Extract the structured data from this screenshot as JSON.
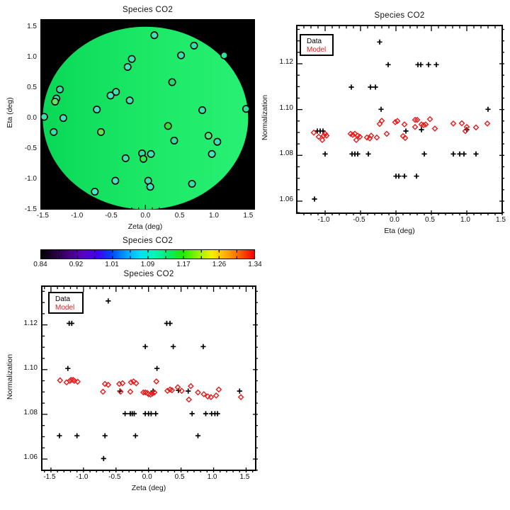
{
  "figure": {
    "background": "#ffffff"
  },
  "colors": {
    "data_marker": "#000000",
    "model_marker": "#e81b1b",
    "frame": "#000000",
    "map_background": "#000000"
  },
  "chart_data": [
    {
      "id": "map",
      "type": "scatter",
      "title": "Species CO2",
      "xlabel": "Zeta (deg)",
      "ylabel": "Eta (deg)",
      "x_range": [
        -1.535,
        1.6
      ],
      "y_range": [
        -1.505,
        1.625
      ],
      "x_major_ticks": [
        -1.5,
        -1.0,
        -0.5,
        0.0,
        0.5,
        1.0,
        1.5
      ],
      "x_tick_labels": [
        "-1.5",
        "-1.0",
        "-0.5",
        "0.0",
        "0.5",
        "1.0",
        "1.5"
      ],
      "y_major_ticks": [
        -1.5,
        -1.0,
        -0.5,
        0.0,
        0.5,
        1.0,
        1.5
      ],
      "y_tick_labels": [
        "-1.5",
        "-1.0",
        "-0.5",
        "0.0",
        "0.5",
        "1.0",
        "1.5"
      ],
      "x_minor_step": 0.1,
      "y_minor_step": 0.1,
      "grid": false,
      "disk": {
        "radius_deg": 1.5,
        "gradient": [
          "#09d857",
          "#1ce866",
          "#28f073"
        ]
      },
      "points": [
        {
          "zeta": 0.13,
          "eta": 1.36,
          "fill": "#3fe2b0"
        },
        {
          "zeta": 0.71,
          "eta": 1.19,
          "fill": "#35dfa6"
        },
        {
          "zeta": 1.15,
          "eta": 1.03,
          "fill": "#2ce49a"
        },
        {
          "zeta": 0.52,
          "eta": 1.03,
          "fill": "#38e0ae"
        },
        {
          "zeta": -0.2,
          "eta": 0.97,
          "fill": "#41e4b8"
        },
        {
          "zeta": -0.26,
          "eta": 0.84,
          "fill": "#45e6c0"
        },
        {
          "zeta": 0.39,
          "eta": 0.59,
          "fill": "#2bdb70"
        },
        {
          "zeta": -1.25,
          "eta": 0.47,
          "fill": "#36e0a8"
        },
        {
          "zeta": -0.43,
          "eta": 0.43,
          "fill": "#3ce2b2"
        },
        {
          "zeta": -0.51,
          "eta": 0.37,
          "fill": "#44e5bd"
        },
        {
          "zeta": -1.3,
          "eta": 0.32,
          "fill": "#3ee3b4"
        },
        {
          "zeta": -1.32,
          "eta": 0.27,
          "fill": "#5fe75a"
        },
        {
          "zeta": -0.23,
          "eta": 0.29,
          "fill": "#40e4b6"
        },
        {
          "zeta": -0.71,
          "eta": 0.14,
          "fill": "#3fe3c6"
        },
        {
          "zeta": 0.83,
          "eta": 0.13,
          "fill": "#3ae1ae"
        },
        {
          "zeta": 1.47,
          "eta": 0.15,
          "fill": "#2fdd9c"
        },
        {
          "zeta": -1.48,
          "eta": 0.02,
          "fill": "#38dfa8"
        },
        {
          "zeta": -1.2,
          "eta": 0.0,
          "fill": "#41e4ba"
        },
        {
          "zeta": 0.33,
          "eta": -0.13,
          "fill": "#2fe52f"
        },
        {
          "zeta": -1.34,
          "eta": -0.23,
          "fill": "#37e0a4"
        },
        {
          "zeta": -0.65,
          "eta": -0.23,
          "fill": "#64e04b"
        },
        {
          "zeta": 0.92,
          "eta": -0.29,
          "fill": "#52e86e"
        },
        {
          "zeta": 0.42,
          "eta": -0.37,
          "fill": "#33df9e"
        },
        {
          "zeta": 1.05,
          "eta": -0.39,
          "fill": "#3ce2b4"
        },
        {
          "zeta": -0.05,
          "eta": -0.58,
          "fill": "#30dd9e"
        },
        {
          "zeta": 0.08,
          "eta": -0.59,
          "fill": "#3de3b6"
        },
        {
          "zeta": 0.97,
          "eta": -0.59,
          "fill": "#44e5c0"
        },
        {
          "zeta": -0.03,
          "eta": -0.67,
          "fill": "#35e649"
        },
        {
          "zeta": -0.29,
          "eta": -0.66,
          "fill": "#3ce2b0"
        },
        {
          "zeta": -0.44,
          "eta": -1.03,
          "fill": "#46e6c2"
        },
        {
          "zeta": 0.04,
          "eta": -1.03,
          "fill": "#39e1ac"
        },
        {
          "zeta": 0.07,
          "eta": -1.13,
          "fill": "#41e4b8"
        },
        {
          "zeta": 0.68,
          "eta": -1.08,
          "fill": "#36e0a6"
        },
        {
          "zeta": -0.74,
          "eta": -1.21,
          "fill": "#4ae7c6"
        }
      ]
    },
    {
      "id": "norm-vs-eta",
      "type": "scatter",
      "title": "Species CO2",
      "xlabel": "Eta (deg)",
      "ylabel": "Normalization",
      "x_range": [
        -1.39,
        1.53
      ],
      "y_range": [
        1.0538,
        1.1364
      ],
      "x_major_ticks": [
        -1.0,
        -0.5,
        0.0,
        0.5,
        1.0,
        1.5
      ],
      "x_tick_labels": [
        "-1.0",
        "-0.5",
        "0.0",
        "0.5",
        "1.0",
        "1.5"
      ],
      "y_major_ticks": [
        1.06,
        1.08,
        1.1,
        1.12
      ],
      "y_tick_labels": [
        "1.06",
        "1.08",
        "1.10",
        "1.12"
      ],
      "x_minor_step": 0.1,
      "y_minor_step": 0.005,
      "grid": false,
      "legend": {
        "data_label": "Data",
        "model_label": "Model"
      },
      "series": [
        {
          "name": "Data",
          "marker": "plus",
          "color": "#000000",
          "points": [
            [
              -0.23,
              1.1295
            ],
            [
              -0.11,
              1.1196
            ],
            [
              0.31,
              1.1196
            ],
            [
              0.35,
              1.1196
            ],
            [
              0.46,
              1.1196
            ],
            [
              0.57,
              1.1196
            ],
            [
              -0.63,
              1.1098
            ],
            [
              -0.36,
              1.1098
            ],
            [
              -0.29,
              1.1098
            ],
            [
              -0.21,
              1.1001
            ],
            [
              1.3,
              1.1001
            ],
            [
              -1.11,
              1.0906
            ],
            [
              -1.07,
              1.0906
            ],
            [
              -1.03,
              1.0906
            ],
            [
              0.14,
              1.0906
            ],
            [
              0.36,
              1.0912
            ],
            [
              1.0,
              1.0912
            ],
            [
              -1.0,
              1.0806
            ],
            [
              -0.62,
              1.0806
            ],
            [
              -0.58,
              1.0806
            ],
            [
              -0.54,
              1.0806
            ],
            [
              -0.39,
              1.0806
            ],
            [
              0.4,
              1.0806
            ],
            [
              0.81,
              1.0806
            ],
            [
              0.9,
              1.0806
            ],
            [
              0.96,
              1.0806
            ],
            [
              1.13,
              1.0806
            ],
            [
              0.0,
              1.0709
            ],
            [
              0.04,
              1.0709
            ],
            [
              0.12,
              1.0709
            ],
            [
              0.29,
              1.0709
            ],
            [
              -1.15,
              1.0609
            ]
          ]
        },
        {
          "name": "Model",
          "marker": "diamond",
          "color": "#e81b1b",
          "points": [
            [
              -1.16,
              1.0899
            ],
            [
              -1.09,
              1.0881
            ],
            [
              -1.04,
              1.0867
            ],
            [
              -1.02,
              1.0886
            ],
            [
              -1.0,
              1.0894
            ],
            [
              -0.98,
              1.0886
            ],
            [
              -0.64,
              1.0894
            ],
            [
              -0.61,
              1.0889
            ],
            [
              -0.58,
              1.0894
            ],
            [
              -0.56,
              1.0867
            ],
            [
              -0.54,
              1.0886
            ],
            [
              -0.51,
              1.0881
            ],
            [
              -0.41,
              1.0878
            ],
            [
              -0.37,
              1.0874
            ],
            [
              -0.35,
              1.0886
            ],
            [
              -0.27,
              1.0878
            ],
            [
              -0.23,
              1.0937
            ],
            [
              -0.2,
              1.0951
            ],
            [
              -0.13,
              1.0894
            ],
            [
              -0.01,
              1.0945
            ],
            [
              0.02,
              1.095
            ],
            [
              0.1,
              1.0884
            ],
            [
              0.12,
              1.0935
            ],
            [
              0.13,
              1.0876
            ],
            [
              0.27,
              1.0955
            ],
            [
              0.3,
              1.0955
            ],
            [
              0.27,
              1.0924
            ],
            [
              0.36,
              1.0935
            ],
            [
              0.39,
              1.0932
            ],
            [
              0.42,
              1.0935
            ],
            [
              0.48,
              1.0958
            ],
            [
              0.55,
              1.0917
            ],
            [
              0.81,
              1.0939
            ],
            [
              0.93,
              1.094
            ],
            [
              0.98,
              1.0906
            ],
            [
              1.0,
              1.0924
            ],
            [
              1.13,
              1.0922
            ],
            [
              1.29,
              1.0939
            ]
          ]
        }
      ]
    },
    {
      "id": "colorbar",
      "type": "colorbar",
      "title": "Species CO2",
      "value_range": [
        0.84,
        1.34
      ],
      "tick_labels": [
        "0.84",
        "0.92",
        "1.01",
        "1.09",
        "1.17",
        "1.26",
        "1.34"
      ],
      "gradient": [
        "#000000",
        "#24003c",
        "#45007e",
        "#5602c8",
        "#3e00f5",
        "#0048ff",
        "#00a2ff",
        "#00e2f0",
        "#00f7b4",
        "#00ee6a",
        "#23e800",
        "#8ef300",
        "#f5ef00",
        "#ffb000",
        "#ff5a00",
        "#f60000"
      ]
    },
    {
      "id": "norm-vs-zeta",
      "type": "scatter",
      "title": "Species CO2",
      "xlabel": "Zeta (deg)",
      "ylabel": "Normalization",
      "x_range": [
        -1.63,
        1.68
      ],
      "y_range": [
        1.054,
        1.137
      ],
      "x_major_ticks": [
        -1.5,
        -1.0,
        -0.5,
        0.0,
        0.5,
        1.0,
        1.5
      ],
      "x_tick_labels": [
        "-1.5",
        "-1.0",
        "-0.5",
        "0.0",
        "0.5",
        "1.0",
        "1.5"
      ],
      "y_major_ticks": [
        1.06,
        1.08,
        1.1,
        1.12
      ],
      "y_tick_labels": [
        "1.06",
        "1.08",
        "1.10",
        "1.12"
      ],
      "x_minor_step": 0.1,
      "y_minor_step": 0.005,
      "grid": false,
      "legend": {
        "data_label": "Data",
        "model_label": "Model"
      },
      "series": [
        {
          "name": "Data",
          "marker": "plus",
          "color": "#000000",
          "points": [
            [
              -0.62,
              1.1307
            ],
            [
              -1.22,
              1.1207
            ],
            [
              -1.18,
              1.1207
            ],
            [
              0.28,
              1.1207
            ],
            [
              0.33,
              1.1207
            ],
            [
              -0.05,
              1.1103
            ],
            [
              0.38,
              1.1103
            ],
            [
              0.84,
              1.1103
            ],
            [
              -1.24,
              1.1005
            ],
            [
              0.13,
              1.1005
            ],
            [
              -0.44,
              1.0904
            ],
            [
              0.07,
              1.0904
            ],
            [
              0.46,
              1.0907
            ],
            [
              0.61,
              1.0904
            ],
            [
              1.4,
              1.0904
            ],
            [
              -0.36,
              1.0803
            ],
            [
              -0.28,
              1.0803
            ],
            [
              -0.25,
              1.0803
            ],
            [
              -0.22,
              1.0803
            ],
            [
              -0.05,
              1.0803
            ],
            [
              0.0,
              1.0803
            ],
            [
              0.04,
              1.0803
            ],
            [
              0.11,
              1.0803
            ],
            [
              0.67,
              1.0803
            ],
            [
              0.88,
              1.0803
            ],
            [
              0.97,
              1.0803
            ],
            [
              1.02,
              1.0803
            ],
            [
              1.06,
              1.0803
            ],
            [
              -1.37,
              1.0704
            ],
            [
              -1.1,
              1.0704
            ],
            [
              -0.67,
              1.0704
            ],
            [
              -0.2,
              1.0704
            ],
            [
              0.76,
              1.0704
            ],
            [
              -0.69,
              1.0602
            ]
          ]
        },
        {
          "name": "Model",
          "marker": "diamond",
          "color": "#e81b1b",
          "points": [
            [
              -1.36,
              1.0952
            ],
            [
              -1.26,
              1.0943
            ],
            [
              -1.21,
              1.095
            ],
            [
              -1.19,
              1.0954
            ],
            [
              -1.16,
              1.0954
            ],
            [
              -1.14,
              1.095
            ],
            [
              -1.09,
              1.0946
            ],
            [
              -0.67,
              1.0936
            ],
            [
              -0.62,
              1.0932
            ],
            [
              -0.7,
              1.0901
            ],
            [
              -0.45,
              1.0936
            ],
            [
              -0.4,
              1.0939
            ],
            [
              -0.43,
              1.0901
            ],
            [
              -0.27,
              1.0943
            ],
            [
              -0.23,
              1.0947
            ],
            [
              -0.19,
              1.0939
            ],
            [
              -0.28,
              1.0901
            ],
            [
              -0.08,
              1.0898
            ],
            [
              -0.05,
              1.0898
            ],
            [
              -0.02,
              1.0896
            ],
            [
              0.0,
              1.089
            ],
            [
              0.03,
              1.0888
            ],
            [
              0.06,
              1.0893
            ],
            [
              0.09,
              1.0898
            ],
            [
              0.12,
              1.0947
            ],
            [
              0.29,
              1.0905
            ],
            [
              0.33,
              1.0911
            ],
            [
              0.36,
              1.0908
            ],
            [
              0.45,
              1.0921
            ],
            [
              0.51,
              1.0905
            ],
            [
              0.62,
              1.0866
            ],
            [
              0.65,
              1.0926
            ],
            [
              0.76,
              1.0898
            ],
            [
              0.85,
              1.089
            ],
            [
              0.91,
              1.088
            ],
            [
              0.96,
              1.0877
            ],
            [
              1.04,
              1.0884
            ],
            [
              1.08,
              1.0911
            ],
            [
              1.42,
              1.0877
            ]
          ]
        }
      ]
    }
  ]
}
